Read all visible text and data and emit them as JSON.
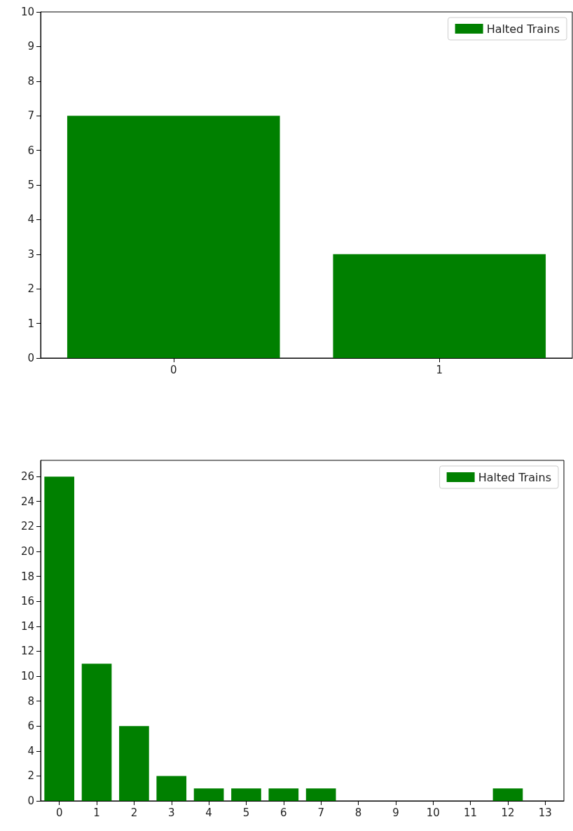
{
  "chart_data": [
    {
      "type": "bar",
      "categories": [
        "0",
        "1"
      ],
      "series": [
        {
          "name": "Halted Trains",
          "color": "#008000",
          "values": [
            7,
            3
          ]
        }
      ],
      "ylim": [
        0,
        10
      ],
      "yticks": [
        0,
        1,
        2,
        3,
        4,
        5,
        6,
        7,
        8,
        9,
        10
      ],
      "legend": "top right"
    },
    {
      "type": "bar",
      "categories": [
        "0",
        "1",
        "2",
        "3",
        "4",
        "5",
        "6",
        "7",
        "8",
        "9",
        "10",
        "11",
        "12",
        "13"
      ],
      "series": [
        {
          "name": "Halted Trains",
          "color": "#008000",
          "values": [
            26,
            11,
            6,
            2,
            1,
            1,
            1,
            1,
            null,
            null,
            null,
            null,
            1,
            null
          ]
        }
      ],
      "ylim": [
        0,
        27.3
      ],
      "yticks": [
        0,
        2,
        4,
        6,
        8,
        10,
        12,
        14,
        16,
        18,
        20,
        22,
        24,
        26
      ],
      "legend": "top right"
    }
  ]
}
